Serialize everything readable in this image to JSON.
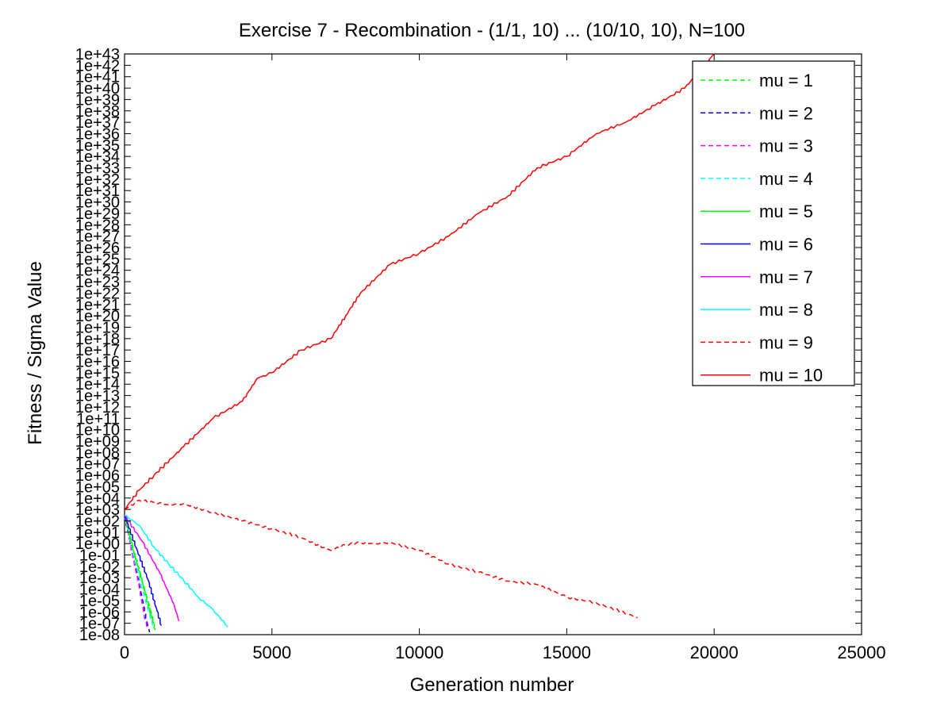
{
  "chart_data": {
    "type": "line",
    "title": "Exercise 7 - Recombination - (1/1, 10) ... (10/10, 10), N=100",
    "xlabel": "Generation number",
    "ylabel": "Fitness / Sigma Value",
    "xlim": [
      0,
      25000
    ],
    "x_ticks": [
      "0",
      "5000",
      "10000",
      "15000",
      "20000",
      "25000"
    ],
    "y_scale": "log",
    "ylim_exponent": [
      -8,
      43
    ],
    "y_ticks": [
      "1e-08",
      "1e-07",
      "1e-06",
      "1e-05",
      "1e-04",
      "1e-03",
      "1e-02",
      "1e-01",
      "1e+00",
      "1e+01",
      "1e+02",
      "1e+03",
      "1e+04",
      "1e+05",
      "1e+06",
      "1e+07",
      "1e+08",
      "1e+09",
      "1e+10",
      "1e+11",
      "1e+12",
      "1e+13",
      "1e+14",
      "1e+15",
      "1e+16",
      "1e+17",
      "1e+18",
      "1e+19",
      "1e+20",
      "1e+21",
      "1e+22",
      "1e+23",
      "1e+24",
      "1e+25",
      "1e+26",
      "1e+27",
      "1e+28",
      "1e+29",
      "1e+30",
      "1e+31",
      "1e+32",
      "1e+33",
      "1e+34",
      "1e+35",
      "1e+36",
      "1e+37",
      "1e+38",
      "1e+39",
      "1e+40",
      "1e+41",
      "1e+42",
      "1e+43"
    ],
    "grid": false,
    "legend_position": "top-right",
    "series": [
      {
        "name": "mu = 1",
        "color": "#00ff00",
        "dash": "dashed",
        "x": [
          0,
          300,
          600,
          900,
          1000
        ],
        "log10_y": [
          2.5,
          -0.5,
          -3.2,
          -6.0,
          -7.0
        ]
      },
      {
        "name": "mu = 2",
        "color": "#0000ff",
        "dash": "dashed",
        "x": [
          0,
          250,
          500,
          750,
          850
        ],
        "log10_y": [
          2.5,
          -0.6,
          -3.5,
          -6.8,
          -7.8
        ]
      },
      {
        "name": "mu = 3",
        "color": "#ff00ff",
        "dash": "dashed",
        "x": [
          0,
          250,
          500,
          700,
          780
        ],
        "log10_y": [
          2.5,
          -0.8,
          -3.9,
          -6.7,
          -7.5
        ]
      },
      {
        "name": "mu = 4",
        "color": "#00ffff",
        "dash": "dashed",
        "x": [
          0,
          300,
          600,
          950
        ],
        "log10_y": [
          2.5,
          -1.0,
          -4.0,
          -7.2
        ]
      },
      {
        "name": "mu = 5",
        "color": "#00ff00",
        "dash": "solid",
        "x": [
          0,
          300,
          600,
          900,
          1050
        ],
        "log10_y": [
          2.5,
          -0.6,
          -3.4,
          -6.3,
          -7.6
        ]
      },
      {
        "name": "mu = 6",
        "color": "#0000ff",
        "dash": "solid",
        "x": [
          0,
          400,
          800,
          1100,
          1250
        ],
        "log10_y": [
          2.5,
          -0.4,
          -3.2,
          -5.9,
          -7.2
        ]
      },
      {
        "name": "mu = 7",
        "color": "#ff00ff",
        "dash": "solid",
        "x": [
          0,
          600,
          1200,
          1650,
          1850
        ],
        "log10_y": [
          2.5,
          0.2,
          -2.6,
          -5.2,
          -6.8
        ]
      },
      {
        "name": "mu = 8",
        "color": "#00ffff",
        "dash": "solid",
        "x": [
          0,
          500,
          1000,
          1500,
          2000,
          2500,
          3000,
          3500
        ],
        "log10_y": [
          2.5,
          1.6,
          -0.3,
          -1.8,
          -3.2,
          -4.7,
          -5.8,
          -7.3
        ]
      },
      {
        "name": "mu = 9",
        "color": "#ff0000",
        "dash": "dashed",
        "x": [
          0,
          500,
          1000,
          1500,
          2000,
          3000,
          4000,
          5000,
          6000,
          7000,
          7500,
          8000,
          8500,
          9000,
          10000,
          11000,
          12000,
          13000,
          14000,
          15000,
          16000,
          17400
        ],
        "log10_y": [
          3.0,
          3.8,
          3.6,
          3.4,
          3.5,
          2.7,
          2.0,
          1.3,
          0.5,
          -0.6,
          -0.1,
          0.1,
          0.0,
          0.1,
          -0.6,
          -1.8,
          -2.5,
          -3.3,
          -3.6,
          -4.7,
          -5.2,
          -6.5
        ]
      },
      {
        "name": "mu = 10",
        "color": "#ff0000",
        "dash": "solid",
        "x": [
          0,
          500,
          1000,
          2000,
          3000,
          4000,
          4500,
          5000,
          6000,
          7000,
          7500,
          8000,
          9000,
          10000,
          11000,
          12000,
          13000,
          14000,
          15000,
          16000,
          17000,
          18000,
          19000,
          20000
        ],
        "log10_y": [
          3.0,
          4.7,
          6.0,
          8.5,
          11.0,
          12.5,
          14.5,
          15.0,
          17.0,
          18.0,
          20.0,
          22.0,
          24.5,
          25.5,
          27.0,
          29.0,
          30.5,
          33.0,
          34.0,
          36.0,
          37.0,
          38.5,
          40.0,
          43.0
        ]
      }
    ]
  }
}
